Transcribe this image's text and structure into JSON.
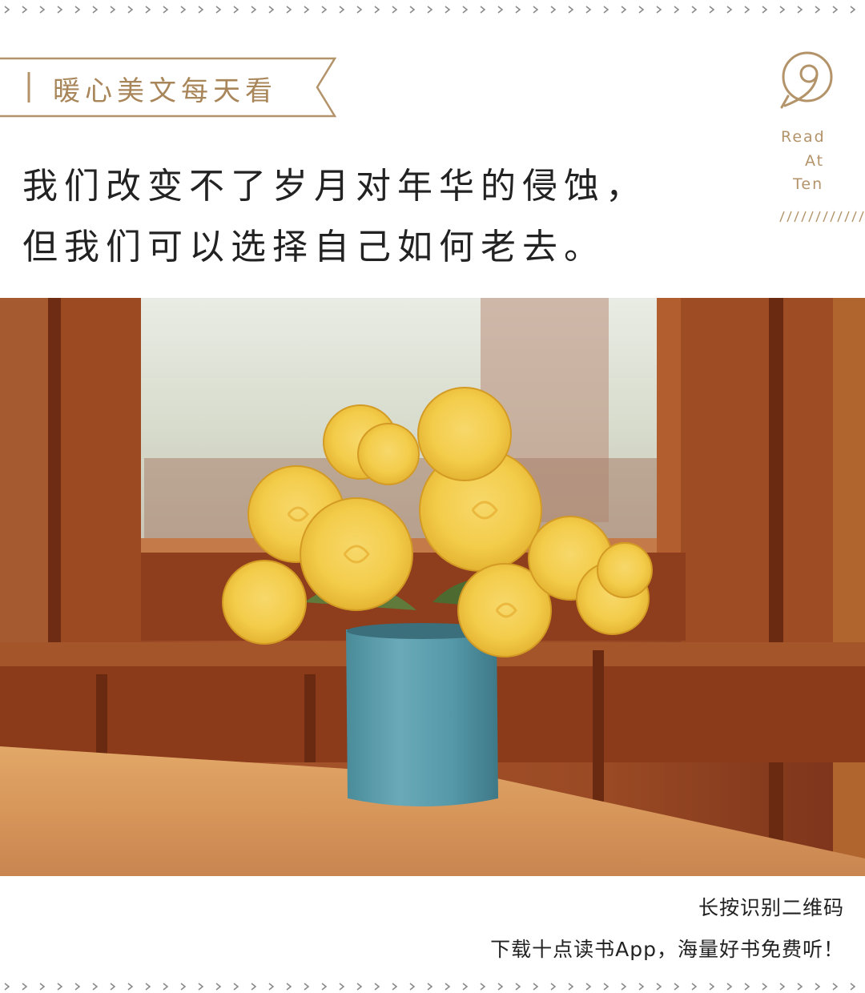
{
  "header": {
    "tag_label": "暖心美文每天看"
  },
  "brand": {
    "line1": "Read",
    "line2": "At",
    "line3": "Ten",
    "accent_color": "#b39369"
  },
  "quote": {
    "line1": "我们改变不了岁月对年华的侵蚀，",
    "line2": "但我们可以选择自己如何老去。"
  },
  "photo": {
    "subject": "flower-vase-photo"
  },
  "footer": {
    "line1": "长按识别二维码",
    "line2": "下载十点读书App，海量好书免费听！"
  },
  "colors": {
    "tag": "#a8865a",
    "text": "#222222",
    "dash": "#8a8a8a"
  }
}
